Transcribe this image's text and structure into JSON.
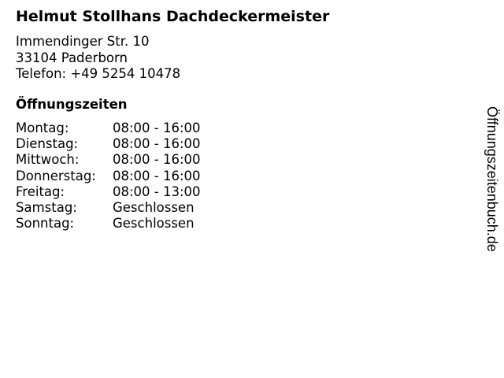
{
  "business": {
    "name": "Helmut Stollhans Dachdeckermeister",
    "street": "Immendinger Str. 10",
    "city": "33104 Paderborn",
    "phone": "Telefon: +49 5254 10478"
  },
  "hours": {
    "heading": "Öffnungszeiten",
    "rows": [
      {
        "day": "Montag:",
        "time": "08:00 - 16:00"
      },
      {
        "day": "Dienstag:",
        "time": "08:00 - 16:00"
      },
      {
        "day": "Mittwoch:",
        "time": "08:00 - 16:00"
      },
      {
        "day": "Donnerstag:",
        "time": "08:00 - 16:00"
      },
      {
        "day": "Freitag:",
        "time": "08:00 - 13:00"
      },
      {
        "day": "Samstag:",
        "time": "Geschlossen"
      },
      {
        "day": "Sonntag:",
        "time": "Geschlossen"
      }
    ]
  },
  "brand": "Öffnungszeitenbuch.de"
}
